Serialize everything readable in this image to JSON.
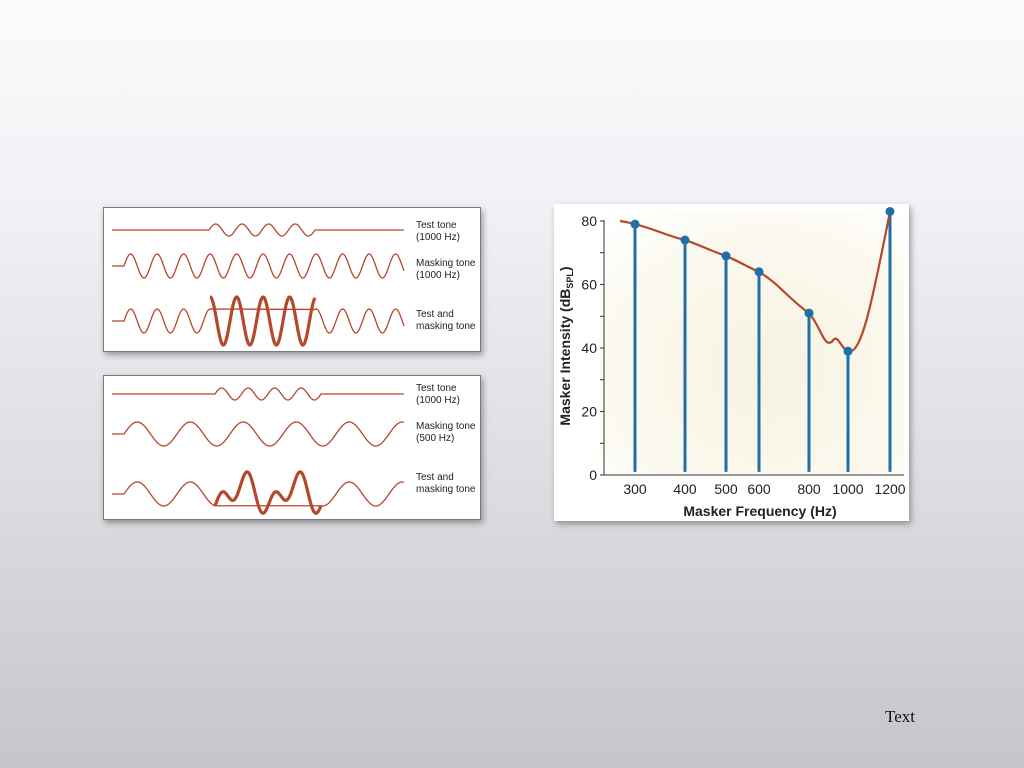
{
  "top_panel": {
    "rows": [
      {
        "label_line1": "Test tone",
        "label_line2": "(1000 Hz)"
      },
      {
        "label_line1": "Masking tone",
        "label_line2": "(1000 Hz)"
      },
      {
        "label_line1": "Test and",
        "label_line2": "masking tone"
      }
    ]
  },
  "bottom_panel": {
    "rows": [
      {
        "label_line1": "Test tone",
        "label_line2": "(1000 Hz)"
      },
      {
        "label_line1": "Masking tone",
        "label_line2": "(500 Hz)"
      },
      {
        "label_line1": "Test and",
        "label_line2": "masking tone"
      }
    ]
  },
  "colors": {
    "wave": "#b5472a",
    "stem": "#1f6fa8",
    "axis": "#333333"
  },
  "chart_data": {
    "type": "line",
    "xlabel": "Masker Frequency (Hz)",
    "ylabel_main": "Masker Intensity (dB",
    "ylabel_sub": "SPL",
    "ylabel_close": ")",
    "x_ticks": [
      "300",
      "400",
      "500",
      "600",
      "800",
      "1000",
      "1200"
    ],
    "y_ticks": [
      "0",
      "20",
      "40",
      "60",
      "80"
    ],
    "ylim": [
      0,
      80
    ],
    "points": [
      {
        "x": "300",
        "y": 79
      },
      {
        "x": "400",
        "y": 74
      },
      {
        "x": "500",
        "y": 69
      },
      {
        "x": "600",
        "y": 64
      },
      {
        "x": "800",
        "y": 51
      },
      {
        "x": "1000",
        "y": 39
      },
      {
        "x": "1200",
        "y": 83
      }
    ],
    "grid": false
  },
  "footer": {
    "text": "Text"
  }
}
